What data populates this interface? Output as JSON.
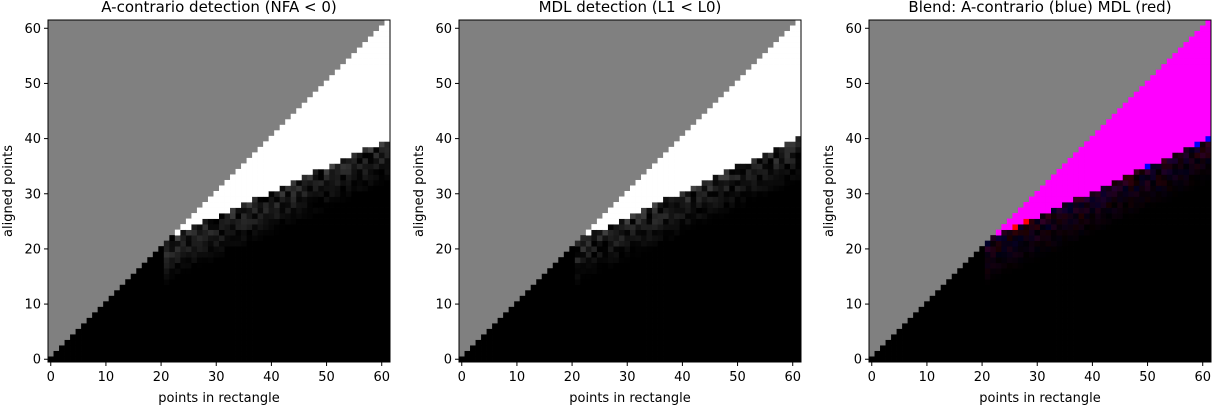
{
  "chart_data": [
    {
      "type": "heatmap",
      "title": "A-contrario detection (NFA < 0)",
      "xlabel": "points in rectangle",
      "ylabel": "aligned points",
      "xlim": [
        0,
        61
      ],
      "ylim": [
        0,
        61
      ],
      "xticks": [
        "0",
        "10",
        "20",
        "30",
        "40",
        "50",
        "60"
      ],
      "yticks": [
        "0",
        "10",
        "20",
        "30",
        "40",
        "50",
        "60"
      ],
      "mode": "acontrario",
      "invalid_region": "aligned points > points in rectangle",
      "detected_region": "white",
      "colors": {
        "invalid": "#808080",
        "detected": "#ffffff",
        "not_detected": "#000000"
      }
    },
    {
      "type": "heatmap",
      "title": "MDL detection (L1 < L0)",
      "xlabel": "points in rectangle",
      "ylabel": "aligned points",
      "xlim": [
        0,
        61
      ],
      "ylim": [
        0,
        61
      ],
      "xticks": [
        "0",
        "10",
        "20",
        "30",
        "40",
        "50",
        "60"
      ],
      "yticks": [
        "0",
        "10",
        "20",
        "30",
        "40",
        "50",
        "60"
      ],
      "mode": "mdl",
      "invalid_region": "aligned points > points in rectangle",
      "detected_region": "white",
      "colors": {
        "invalid": "#808080",
        "detected": "#ffffff",
        "not_detected": "#000000"
      }
    },
    {
      "type": "heatmap",
      "title": "Blend: A-contrario (blue) MDL (red)",
      "xlabel": "points in rectangle",
      "ylabel": "aligned points",
      "xlim": [
        0,
        61
      ],
      "ylim": [
        0,
        61
      ],
      "xticks": [
        "0",
        "10",
        "20",
        "30",
        "40",
        "50",
        "60"
      ],
      "yticks": [
        "0",
        "10",
        "20",
        "30",
        "40",
        "50",
        "60"
      ],
      "mode": "blend",
      "invalid_region": "aligned points > points in rectangle",
      "colors": {
        "invalid": "#808080",
        "both": "#ff00ff",
        "acontrario_only": "#0000ff",
        "mdl_only": "#ff0000",
        "not_detected": "#000000"
      }
    }
  ]
}
